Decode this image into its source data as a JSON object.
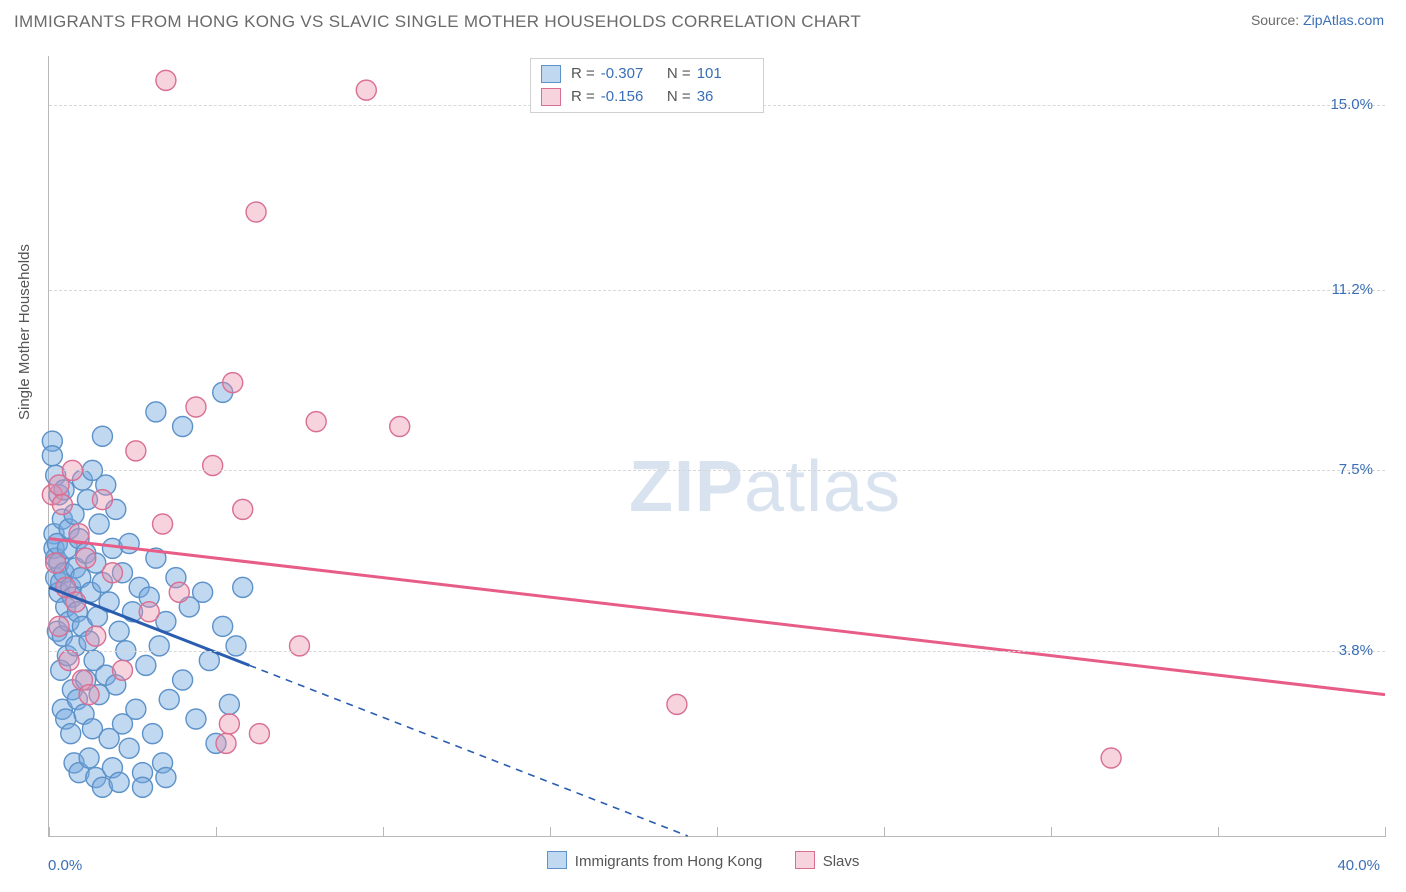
{
  "title": "IMMIGRANTS FROM HONG KONG VS SLAVIC SINGLE MOTHER HOUSEHOLDS CORRELATION CHART",
  "source_prefix": "Source: ",
  "source_name": "ZipAtlas.com",
  "watermark_zip": "ZIP",
  "watermark_atlas": "atlas",
  "chart": {
    "type": "scatter-with-trend",
    "background_color": "#ffffff",
    "grid_color": "#d8d8d8",
    "axis_color": "#b8b8b8",
    "tick_label_color": "#3a6fb7",
    "axis_label_color": "#555555",
    "title_color": "#6a6a6a",
    "title_fontsize": 17,
    "label_fontsize": 15,
    "x_axis": {
      "label": "",
      "min": 0.0,
      "max": 40.0,
      "min_label": "0.0%",
      "max_label": "40.0%",
      "tick_step": 5.0
    },
    "y_axis": {
      "label": "Single Mother Households",
      "min": 0.0,
      "max": 16.0,
      "ticks": [
        3.8,
        7.5,
        11.2,
        15.0
      ],
      "tick_labels": [
        "3.8%",
        "7.5%",
        "11.2%",
        "15.0%"
      ]
    },
    "marker_radius": 10,
    "series": [
      {
        "id": "hongkong",
        "label": "Immigrants from Hong Kong",
        "swatch_fill": "rgba(117,169,224,0.45)",
        "swatch_stroke": "#5d92c9",
        "R": "-0.307",
        "N": "101",
        "trend": {
          "solid_color": "#2a5db0",
          "solid_width": 3,
          "dash_color": "#2a5db0",
          "y_at_x0": 5.1,
          "y_at_x_solid_end": 3.5,
          "x_solid_end": 6.0,
          "y_at_xmax_extrap": -5.7
        },
        "points": [
          [
            0.1,
            8.1
          ],
          [
            0.1,
            7.8
          ],
          [
            0.15,
            6.2
          ],
          [
            0.15,
            5.9
          ],
          [
            0.2,
            5.7
          ],
          [
            0.2,
            7.4
          ],
          [
            0.2,
            5.3
          ],
          [
            0.25,
            4.2
          ],
          [
            0.25,
            6.0
          ],
          [
            0.3,
            5.0
          ],
          [
            0.3,
            5.6
          ],
          [
            0.3,
            7.0
          ],
          [
            0.35,
            3.4
          ],
          [
            0.35,
            5.2
          ],
          [
            0.4,
            6.5
          ],
          [
            0.4,
            4.1
          ],
          [
            0.4,
            2.6
          ],
          [
            0.45,
            5.4
          ],
          [
            0.45,
            7.1
          ],
          [
            0.5,
            4.7
          ],
          [
            0.5,
            2.4
          ],
          [
            0.55,
            3.7
          ],
          [
            0.55,
            5.9
          ],
          [
            0.6,
            4.4
          ],
          [
            0.6,
            6.3
          ],
          [
            0.65,
            2.1
          ],
          [
            0.65,
            5.1
          ],
          [
            0.7,
            3.0
          ],
          [
            0.7,
            4.9
          ],
          [
            0.75,
            6.6
          ],
          [
            0.75,
            1.5
          ],
          [
            0.8,
            3.9
          ],
          [
            0.8,
            5.5
          ],
          [
            0.85,
            2.8
          ],
          [
            0.85,
            4.6
          ],
          [
            0.9,
            1.3
          ],
          [
            0.9,
            6.1
          ],
          [
            0.95,
            5.3
          ],
          [
            1.0,
            7.3
          ],
          [
            1.0,
            4.3
          ],
          [
            1.05,
            2.5
          ],
          [
            1.1,
            5.8
          ],
          [
            1.1,
            3.2
          ],
          [
            1.15,
            6.9
          ],
          [
            1.2,
            1.6
          ],
          [
            1.2,
            4.0
          ],
          [
            1.25,
            5.0
          ],
          [
            1.3,
            2.2
          ],
          [
            1.3,
            7.5
          ],
          [
            1.35,
            3.6
          ],
          [
            1.4,
            5.6
          ],
          [
            1.4,
            1.2
          ],
          [
            1.45,
            4.5
          ],
          [
            1.5,
            2.9
          ],
          [
            1.5,
            6.4
          ],
          [
            1.6,
            1.0
          ],
          [
            1.6,
            5.2
          ],
          [
            1.7,
            3.3
          ],
          [
            1.7,
            7.2
          ],
          [
            1.8,
            4.8
          ],
          [
            1.8,
            2.0
          ],
          [
            1.9,
            5.9
          ],
          [
            1.9,
            1.4
          ],
          [
            2.0,
            3.1
          ],
          [
            2.0,
            6.7
          ],
          [
            2.1,
            1.1
          ],
          [
            2.1,
            4.2
          ],
          [
            2.2,
            5.4
          ],
          [
            2.2,
            2.3
          ],
          [
            2.3,
            3.8
          ],
          [
            2.4,
            1.8
          ],
          [
            2.4,
            6.0
          ],
          [
            2.5,
            4.6
          ],
          [
            2.6,
            2.6
          ],
          [
            2.7,
            5.1
          ],
          [
            2.8,
            1.3
          ],
          [
            2.9,
            3.5
          ],
          [
            3.0,
            4.9
          ],
          [
            3.1,
            2.1
          ],
          [
            3.2,
            5.7
          ],
          [
            3.3,
            3.9
          ],
          [
            3.4,
            1.5
          ],
          [
            3.5,
            4.4
          ],
          [
            3.6,
            2.8
          ],
          [
            3.8,
            5.3
          ],
          [
            4.0,
            3.2
          ],
          [
            4.2,
            4.7
          ],
          [
            4.4,
            2.4
          ],
          [
            4.6,
            5.0
          ],
          [
            4.8,
            3.6
          ],
          [
            5.0,
            1.9
          ],
          [
            5.2,
            4.3
          ],
          [
            5.4,
            2.7
          ],
          [
            5.6,
            3.9
          ],
          [
            5.8,
            5.1
          ],
          [
            4.0,
            8.4
          ],
          [
            5.2,
            9.1
          ],
          [
            3.2,
            8.7
          ],
          [
            1.6,
            8.2
          ],
          [
            2.8,
            1.0
          ],
          [
            3.5,
            1.2
          ]
        ]
      },
      {
        "id": "slavs",
        "label": "Slavs",
        "swatch_fill": "rgba(236,145,172,0.40)",
        "swatch_stroke": "#d96f93",
        "R": "-0.156",
        "N": "36",
        "trend": {
          "color": "#e75d87",
          "width": 3,
          "y_at_x0": 6.1,
          "y_at_xmax": 2.9
        },
        "points": [
          [
            0.1,
            7.0
          ],
          [
            0.2,
            5.6
          ],
          [
            0.3,
            4.3
          ],
          [
            0.4,
            6.8
          ],
          [
            0.5,
            5.1
          ],
          [
            0.6,
            3.6
          ],
          [
            0.7,
            7.5
          ],
          [
            0.8,
            4.8
          ],
          [
            0.9,
            6.2
          ],
          [
            1.0,
            3.2
          ],
          [
            1.1,
            5.7
          ],
          [
            1.2,
            2.9
          ],
          [
            1.4,
            4.1
          ],
          [
            1.6,
            6.9
          ],
          [
            1.9,
            5.4
          ],
          [
            2.2,
            3.4
          ],
          [
            2.6,
            7.9
          ],
          [
            3.0,
            4.6
          ],
          [
            3.4,
            6.4
          ],
          [
            3.9,
            5.0
          ],
          [
            4.4,
            8.8
          ],
          [
            4.9,
            7.6
          ],
          [
            5.3,
            1.9
          ],
          [
            5.4,
            2.3
          ],
          [
            5.5,
            9.3
          ],
          [
            5.8,
            6.7
          ],
          [
            6.3,
            2.1
          ],
          [
            7.5,
            3.9
          ],
          [
            8.0,
            8.5
          ],
          [
            9.5,
            15.3
          ],
          [
            3.5,
            15.5
          ],
          [
            6.2,
            12.8
          ],
          [
            18.8,
            2.7
          ],
          [
            31.8,
            1.6
          ],
          [
            10.5,
            8.4
          ],
          [
            0.3,
            7.2
          ]
        ]
      }
    ]
  },
  "legend_bottom": {
    "items": [
      {
        "swatch": "blue",
        "label_path": "chart.series.0.label"
      },
      {
        "swatch": "pink",
        "label_path": "chart.series.1.label"
      }
    ]
  }
}
